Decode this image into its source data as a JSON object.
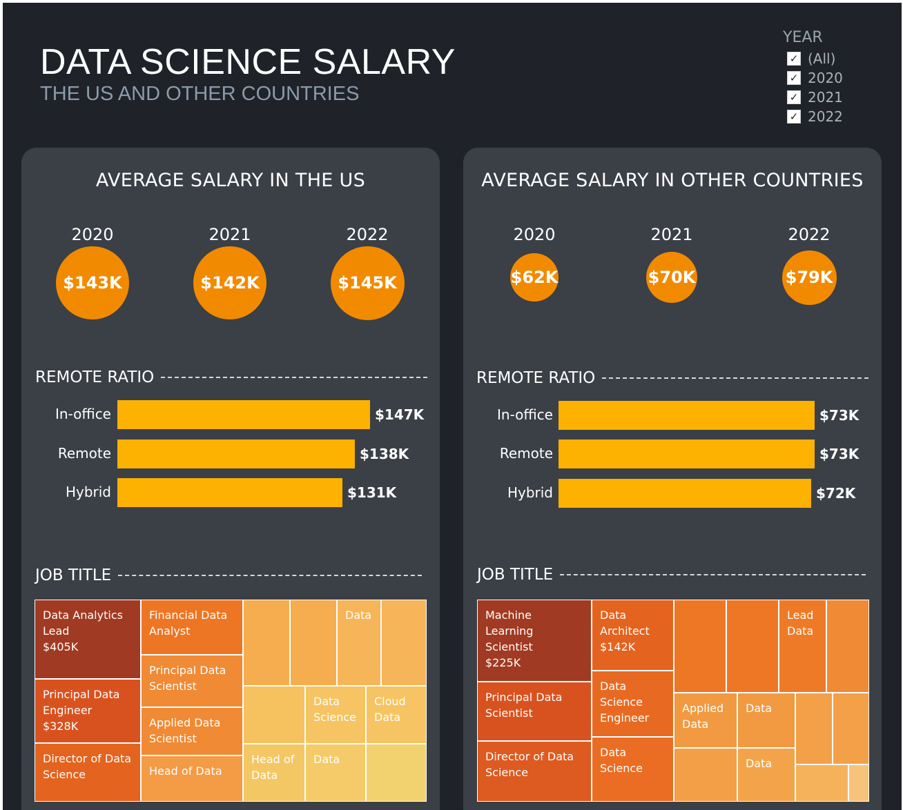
{
  "header": {
    "title": "DATA SCIENCE SALARY",
    "subtitle": "THE US AND OTHER COUNTRIES"
  },
  "filter": {
    "label": "YEAR",
    "options": [
      "(All)",
      "2020",
      "2021",
      "2022"
    ],
    "checked": [
      true,
      true,
      true,
      true
    ],
    "check_mark": "✓"
  },
  "colors": {
    "background": "#1f2329",
    "panel": "#3b3f46",
    "bubble": "#f28a00",
    "bar": "#fdb100"
  },
  "panels": {
    "us": {
      "title": "AVERAGE SALARY IN THE US",
      "years": [
        "2020",
        "2021",
        "2022"
      ],
      "averages": [
        "$143K",
        "$142K",
        "$145K"
      ],
      "remote_title": "REMOTE RATIO",
      "job_title": "JOB TITLE"
    },
    "other": {
      "title": "AVERAGE SALARY IN OTHER COUNTRIES",
      "years": [
        "2020",
        "2021",
        "2022"
      ],
      "averages": [
        "$62K",
        "$70K",
        "$79K"
      ],
      "remote_title": "REMOTE RATIO",
      "job_title": "JOB TITLE"
    }
  },
  "chart_data": [
    {
      "type": "bar",
      "panel": "us",
      "title": "AVERAGE SALARY IN THE US",
      "categories": [
        "2020",
        "2021",
        "2022"
      ],
      "values": [
        143,
        142,
        145
      ],
      "labels": [
        "$143K",
        "$142K",
        "$145K"
      ],
      "unit": "thousand USD"
    },
    {
      "type": "bar",
      "panel": "us",
      "title": "REMOTE RATIO",
      "categories": [
        "In-office",
        "Remote",
        "Hybrid"
      ],
      "values": [
        147,
        138,
        131
      ],
      "labels": [
        "$147K",
        "$138K",
        "$131K"
      ],
      "unit": "thousand USD"
    },
    {
      "type": "heatmap",
      "panel": "us",
      "title": "JOB TITLE",
      "cells": [
        {
          "label": [
            "Data Analytics",
            "Lead",
            "$405K"
          ],
          "value": 405,
          "color": "#a13a22"
        },
        {
          "label": [
            "Principal Data",
            "Engineer",
            "$328K"
          ],
          "value": 328,
          "color": "#d8521f"
        },
        {
          "label": [
            "Director of Data",
            "Science"
          ],
          "color": "#e4631f"
        },
        {
          "label": [
            "Financial Data",
            "Analyst"
          ],
          "color": "#ed7624"
        },
        {
          "label": [
            "Principal Data",
            "Scientist"
          ],
          "color": "#f08a34"
        },
        {
          "label": [
            "Applied Data",
            "Scientist"
          ],
          "color": "#f08a34"
        },
        {
          "label": [
            "Head of Data"
          ],
          "color": "#f39b45"
        },
        {
          "label": [],
          "color": "#f6ad4f"
        },
        {
          "label": [],
          "color": "#f6ad4f"
        },
        {
          "label": [
            "Data"
          ],
          "color": "#f6b558"
        },
        {
          "label": [],
          "color": "#f6b558"
        },
        {
          "label": [],
          "color": "#f6c15f"
        },
        {
          "label": [
            "Data",
            "Science"
          ],
          "color": "#f6c463"
        },
        {
          "label": [
            "Cloud",
            "Data"
          ],
          "color": "#f6c463"
        },
        {
          "label": [
            "Head of",
            "Data"
          ],
          "color": "#f4c765"
        },
        {
          "label": [
            "Data"
          ],
          "color": "#f4cb68"
        },
        {
          "label": [],
          "color": "#f2d26e"
        }
      ]
    },
    {
      "type": "bar",
      "panel": "other",
      "title": "AVERAGE SALARY IN OTHER COUNTRIES",
      "categories": [
        "2020",
        "2021",
        "2022"
      ],
      "values": [
        62,
        70,
        79
      ],
      "labels": [
        "$62K",
        "$70K",
        "$79K"
      ],
      "unit": "thousand USD"
    },
    {
      "type": "bar",
      "panel": "other",
      "title": "REMOTE RATIO",
      "categories": [
        "In-office",
        "Remote",
        "Hybrid"
      ],
      "values": [
        73,
        73,
        72
      ],
      "labels": [
        "$73K",
        "$73K",
        "$72K"
      ],
      "unit": "thousand USD"
    },
    {
      "type": "heatmap",
      "panel": "other",
      "title": "JOB TITLE",
      "cells": [
        {
          "label": [
            "Machine",
            "Learning",
            "Scientist",
            "$225K"
          ],
          "value": 225,
          "color": "#a13a22"
        },
        {
          "label": [
            "Principal Data",
            "Scientist"
          ],
          "color": "#d8521f"
        },
        {
          "label": [
            "Director of Data",
            "Science"
          ],
          "color": "#dd5a20"
        },
        {
          "label": [
            "Data",
            "Architect",
            "$142K"
          ],
          "value": 142,
          "color": "#e4631f"
        },
        {
          "label": [
            "Data",
            "Science",
            "Engineer"
          ],
          "color": "#e86a22"
        },
        {
          "label": [
            "Data",
            "Science"
          ],
          "color": "#ea6d23"
        },
        {
          "label": [],
          "color": "#ee7725"
        },
        {
          "label": [],
          "color": "#ee7725"
        },
        {
          "label": [
            "Lead",
            "Data"
          ],
          "color": "#ee7a27"
        },
        {
          "label": [],
          "color": "#f08a34"
        },
        {
          "label": [
            "Applied",
            "Data"
          ],
          "color": "#f19a41"
        },
        {
          "label": [
            "Data"
          ],
          "color": "#f19a41"
        },
        {
          "label": [],
          "color": "#f3a048"
        },
        {
          "label": [],
          "color": "#f3a048"
        },
        {
          "label": [],
          "color": "#f39f47"
        },
        {
          "label": [
            "Data"
          ],
          "color": "#f3a44b"
        },
        {
          "label": [],
          "color": "#f6b25a"
        },
        {
          "label": [],
          "color": "#f7c27a"
        }
      ]
    }
  ]
}
